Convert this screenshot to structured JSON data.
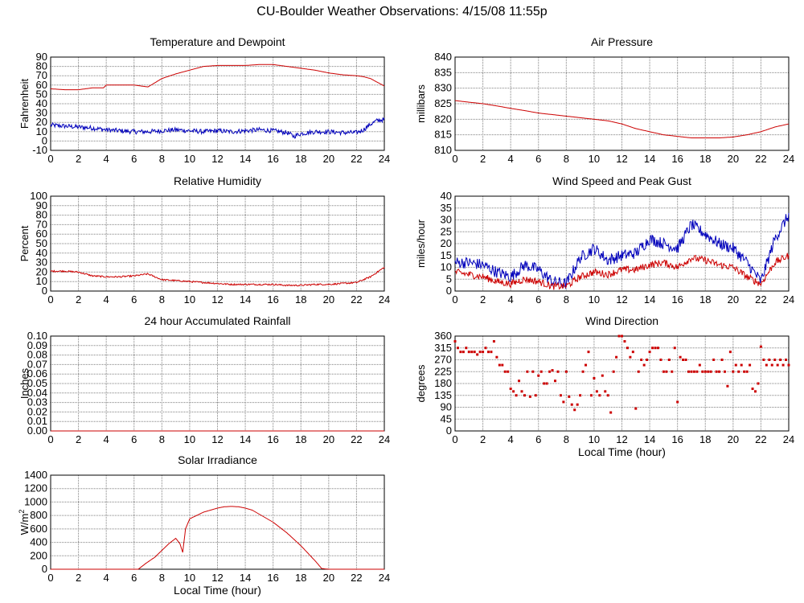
{
  "page_title": "CU-Boulder Weather Observations: 4/15/08 11:55p",
  "colors": {
    "red": "#cc0000",
    "blue": "#0000bb",
    "grid": "#808080",
    "axis": "#000000"
  },
  "chart_data": [
    {
      "id": "temp",
      "type": "line",
      "title": "Temperature and Dewpoint",
      "ylabel": "Fahrenheit",
      "xlabel": "",
      "xlim": [
        0,
        24
      ],
      "ylim": [
        -10,
        90
      ],
      "xticks": [
        0,
        2,
        4,
        6,
        8,
        10,
        12,
        14,
        16,
        18,
        20,
        22,
        24
      ],
      "yticks": [
        -10,
        0,
        10,
        20,
        30,
        40,
        50,
        60,
        70,
        80,
        90
      ],
      "series": [
        {
          "color": "red",
          "x": [
            0,
            1,
            2,
            3,
            3.8,
            4,
            5,
            6,
            6.5,
            7,
            8,
            9,
            10,
            11,
            12,
            13,
            14,
            15,
            16,
            17,
            18,
            19,
            20,
            21,
            22,
            22.5,
            23,
            23.5,
            24
          ],
          "y": [
            56,
            55,
            55,
            57,
            57,
            60,
            60,
            60,
            59,
            58,
            67,
            72,
            76,
            80,
            81,
            81,
            81,
            82,
            82,
            80,
            78,
            76,
            73,
            71,
            70,
            69,
            67,
            63,
            59
          ]
        },
        {
          "color": "blue",
          "noise": 2.5,
          "x": [
            0,
            1,
            2,
            3,
            4,
            5,
            6,
            7,
            8,
            9,
            10,
            11,
            12,
            13,
            14,
            15,
            16,
            17,
            17.5,
            18,
            19,
            20,
            21,
            22,
            22.5,
            23,
            23.5,
            24
          ],
          "y": [
            17,
            16,
            15,
            14,
            12,
            11,
            10,
            10,
            11,
            12,
            11,
            10,
            11,
            10,
            11,
            12,
            11,
            9,
            5,
            8,
            10,
            10,
            9,
            9,
            12,
            18,
            22,
            23
          ]
        }
      ]
    },
    {
      "id": "pressure",
      "type": "line",
      "title": "Air Pressure",
      "ylabel": "millibars",
      "xlabel": "",
      "xlim": [
        0,
        24
      ],
      "ylim": [
        810,
        840
      ],
      "xticks": [
        0,
        2,
        4,
        6,
        8,
        10,
        12,
        14,
        16,
        18,
        20,
        22,
        24
      ],
      "yticks": [
        810,
        815,
        820,
        825,
        830,
        835,
        840
      ],
      "series": [
        {
          "color": "red",
          "x": [
            0,
            1,
            2,
            3,
            4,
            5,
            6,
            7,
            8,
            9,
            10,
            11,
            12,
            13,
            14,
            15,
            16,
            17,
            18,
            19,
            20,
            21,
            22,
            23,
            24
          ],
          "y": [
            826,
            825.5,
            825,
            824.3,
            823.5,
            822.8,
            822,
            821.5,
            821,
            820.5,
            820,
            819.5,
            818.5,
            817,
            816,
            815,
            814.5,
            814,
            814,
            814,
            814.3,
            815,
            816,
            817.5,
            818.5
          ]
        }
      ]
    },
    {
      "id": "humidity",
      "type": "line",
      "title": "Relative Humidity",
      "ylabel": "Percent",
      "xlabel": "",
      "xlim": [
        0,
        24
      ],
      "ylim": [
        0,
        100
      ],
      "xticks": [
        0,
        2,
        4,
        6,
        8,
        10,
        12,
        14,
        16,
        18,
        20,
        22,
        24
      ],
      "yticks": [
        0,
        10,
        20,
        30,
        40,
        50,
        60,
        70,
        80,
        90,
        100
      ],
      "series": [
        {
          "color": "red",
          "noise": 0.8,
          "x": [
            0,
            1,
            2,
            3,
            4,
            5,
            6,
            7,
            8,
            9,
            10,
            11,
            12,
            13,
            14,
            15,
            16,
            17,
            18,
            19,
            20,
            21,
            22,
            23,
            24
          ],
          "y": [
            21,
            21,
            20,
            16,
            15,
            15,
            16,
            18,
            12,
            11,
            10,
            9,
            8,
            7,
            7,
            7,
            7,
            6,
            6,
            7,
            7,
            8,
            9,
            15,
            25
          ]
        }
      ]
    },
    {
      "id": "wind",
      "type": "line",
      "title": "Wind Speed and Peak Gust",
      "ylabel": "miles/hour",
      "xlabel": "",
      "xlim": [
        0,
        24
      ],
      "ylim": [
        0,
        40
      ],
      "xticks": [
        0,
        2,
        4,
        6,
        8,
        10,
        12,
        14,
        16,
        18,
        20,
        22,
        24
      ],
      "yticks": [
        0,
        5,
        10,
        15,
        20,
        25,
        30,
        35,
        40
      ],
      "series": [
        {
          "color": "blue",
          "noise": 2.5,
          "x": [
            0,
            1,
            2,
            3,
            4,
            5,
            6,
            7,
            8,
            9,
            10,
            11,
            12,
            13,
            14,
            15,
            16,
            17,
            18,
            19,
            20,
            21,
            22,
            23,
            24
          ],
          "y": [
            12,
            12,
            11,
            8,
            6,
            11,
            9,
            4,
            3,
            14,
            18,
            13,
            15,
            16,
            22,
            20,
            18,
            28,
            24,
            20,
            18,
            12,
            4,
            22,
            32
          ]
        },
        {
          "color": "red",
          "noise": 1.5,
          "x": [
            0,
            1,
            2,
            3,
            4,
            5,
            6,
            7,
            8,
            9,
            10,
            11,
            12,
            13,
            14,
            15,
            16,
            17,
            18,
            19,
            20,
            21,
            22,
            23,
            24
          ],
          "y": [
            8,
            7,
            6,
            4,
            3,
            5,
            4,
            2,
            2,
            6,
            8,
            7,
            9,
            9,
            11,
            12,
            10,
            14,
            13,
            11,
            10,
            6,
            3,
            12,
            15
          ]
        }
      ]
    },
    {
      "id": "rain",
      "type": "line",
      "title": "24 hour Accumulated Rainfall",
      "ylabel": "Inches",
      "xlabel": "",
      "xlim": [
        0,
        24
      ],
      "ylim": [
        0,
        0.1
      ],
      "xticks": [
        0,
        2,
        4,
        6,
        8,
        10,
        12,
        14,
        16,
        18,
        20,
        22,
        24
      ],
      "yticks": [
        0,
        0.01,
        0.02,
        0.03,
        0.04,
        0.05,
        0.06,
        0.07,
        0.08,
        0.09,
        0.1
      ],
      "ytick_labels": [
        "0.00",
        "0.01",
        "0.02",
        "0.03",
        "0.04",
        "0.05",
        "0.06",
        "0.07",
        "0.08",
        "0.09",
        "0.10"
      ],
      "series": [
        {
          "color": "red",
          "x": [
            0,
            24
          ],
          "y": [
            0,
            0
          ]
        }
      ]
    },
    {
      "id": "winddir",
      "type": "scatter",
      "title": "Wind Direction",
      "ylabel": "degrees",
      "xlabel": "Local Time (hour)",
      "xlim": [
        0,
        24
      ],
      "ylim": [
        0,
        360
      ],
      "xticks": [
        0,
        2,
        4,
        6,
        8,
        10,
        12,
        14,
        16,
        18,
        20,
        22,
        24
      ],
      "yticks": [
        0,
        45,
        90,
        135,
        180,
        225,
        270,
        315,
        360
      ],
      "series": [
        {
          "color": "red",
          "points": [
            [
              0,
              340
            ],
            [
              0.2,
              315
            ],
            [
              0.4,
              300
            ],
            [
              0.6,
              300
            ],
            [
              0.8,
              315
            ],
            [
              1,
              300
            ],
            [
              1.2,
              300
            ],
            [
              1.4,
              300
            ],
            [
              1.6,
              290
            ],
            [
              1.8,
              300
            ],
            [
              2,
              300
            ],
            [
              2.2,
              315
            ],
            [
              2.4,
              300
            ],
            [
              2.6,
              300
            ],
            [
              2.8,
              340
            ],
            [
              3,
              280
            ],
            [
              3.2,
              250
            ],
            [
              3.4,
              250
            ],
            [
              3.6,
              225
            ],
            [
              3.8,
              225
            ],
            [
              4,
              160
            ],
            [
              4.2,
              150
            ],
            [
              4.4,
              135
            ],
            [
              4.6,
              190
            ],
            [
              4.8,
              150
            ],
            [
              5,
              135
            ],
            [
              5.2,
              225
            ],
            [
              5.4,
              130
            ],
            [
              5.6,
              225
            ],
            [
              5.8,
              135
            ],
            [
              6,
              210
            ],
            [
              6.2,
              225
            ],
            [
              6.4,
              180
            ],
            [
              6.6,
              180
            ],
            [
              6.8,
              225
            ],
            [
              7,
              230
            ],
            [
              7.2,
              190
            ],
            [
              7.4,
              225
            ],
            [
              7.6,
              135
            ],
            [
              7.8,
              110
            ],
            [
              8,
              225
            ],
            [
              8.2,
              130
            ],
            [
              8.4,
              100
            ],
            [
              8.6,
              80
            ],
            [
              8.8,
              100
            ],
            [
              9,
              135
            ],
            [
              9.2,
              225
            ],
            [
              9.4,
              250
            ],
            [
              9.6,
              300
            ],
            [
              9.8,
              135
            ],
            [
              10,
              200
            ],
            [
              10.2,
              150
            ],
            [
              10.4,
              135
            ],
            [
              10.6,
              210
            ],
            [
              10.8,
              150
            ],
            [
              11,
              135
            ],
            [
              11.2,
              70
            ],
            [
              11.4,
              225
            ],
            [
              11.6,
              280
            ],
            [
              11.8,
              360
            ],
            [
              12,
              360
            ],
            [
              12.2,
              340
            ],
            [
              12.4,
              315
            ],
            [
              12.6,
              280
            ],
            [
              12.8,
              300
            ],
            [
              13,
              85
            ],
            [
              13.2,
              225
            ],
            [
              13.4,
              270
            ],
            [
              13.6,
              250
            ],
            [
              13.8,
              270
            ],
            [
              14,
              300
            ],
            [
              14.2,
              315
            ],
            [
              14.4,
              315
            ],
            [
              14.6,
              315
            ],
            [
              14.8,
              270
            ],
            [
              15,
              225
            ],
            [
              15.2,
              225
            ],
            [
              15.4,
              270
            ],
            [
              15.6,
              225
            ],
            [
              15.8,
              315
            ],
            [
              16,
              110
            ],
            [
              16.2,
              280
            ],
            [
              16.4,
              270
            ],
            [
              16.6,
              270
            ],
            [
              16.8,
              225
            ],
            [
              17,
              225
            ],
            [
              17.2,
              225
            ],
            [
              17.4,
              225
            ],
            [
              17.6,
              250
            ],
            [
              17.8,
              225
            ],
            [
              18,
              225
            ],
            [
              18.2,
              225
            ],
            [
              18.4,
              225
            ],
            [
              18.6,
              270
            ],
            [
              18.8,
              225
            ],
            [
              19,
              225
            ],
            [
              19.2,
              270
            ],
            [
              19.4,
              225
            ],
            [
              19.6,
              170
            ],
            [
              19.8,
              300
            ],
            [
              20,
              225
            ],
            [
              20.2,
              250
            ],
            [
              20.4,
              225
            ],
            [
              20.6,
              250
            ],
            [
              20.8,
              225
            ],
            [
              21,
              225
            ],
            [
              21.2,
              250
            ],
            [
              21.4,
              160
            ],
            [
              21.6,
              150
            ],
            [
              21.8,
              180
            ],
            [
              22,
              320
            ],
            [
              22.2,
              270
            ],
            [
              22.4,
              250
            ],
            [
              22.6,
              270
            ],
            [
              22.8,
              250
            ],
            [
              23,
              270
            ],
            [
              23.2,
              250
            ],
            [
              23.4,
              270
            ],
            [
              23.6,
              250
            ],
            [
              23.8,
              270
            ],
            [
              24,
              250
            ]
          ]
        }
      ]
    },
    {
      "id": "solar",
      "type": "line",
      "title": "Solar Irradiance",
      "ylabel": "W/m",
      "ylabel_sup": "2",
      "xlabel": "Local Time (hour)",
      "xlim": [
        0,
        24
      ],
      "ylim": [
        0,
        1400
      ],
      "xticks": [
        0,
        2,
        4,
        6,
        8,
        10,
        12,
        14,
        16,
        18,
        20,
        22,
        24
      ],
      "yticks": [
        0,
        200,
        400,
        600,
        800,
        1000,
        1200,
        1400
      ],
      "series": [
        {
          "color": "red",
          "x": [
            0,
            6.3,
            6.8,
            7.5,
            8,
            8.5,
            9,
            9.3,
            9.5,
            9.7,
            10,
            10.5,
            11,
            11.5,
            12,
            12.5,
            13,
            13.5,
            14,
            14.5,
            15,
            16,
            17,
            18,
            19,
            19.5,
            20,
            24
          ],
          "y": [
            0,
            0,
            80,
            180,
            280,
            380,
            460,
            380,
            250,
            600,
            750,
            800,
            850,
            880,
            910,
            930,
            935,
            930,
            910,
            880,
            820,
            700,
            540,
            350,
            130,
            10,
            0,
            0
          ]
        }
      ]
    }
  ]
}
